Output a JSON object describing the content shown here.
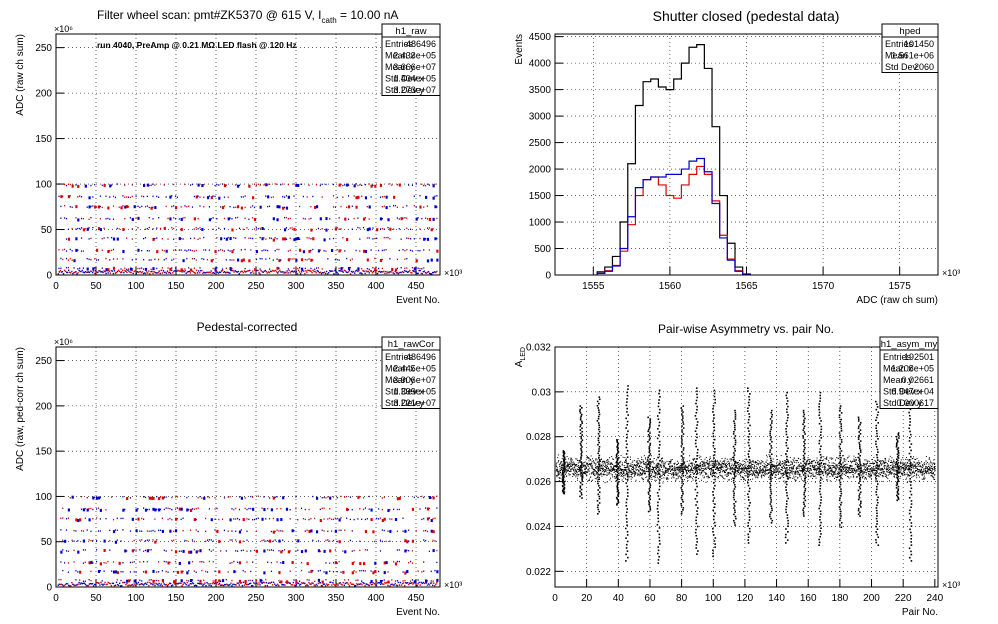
{
  "chart_data": [
    {
      "type": "scatter",
      "title": "Filter wheel scan: pmt#ZK5370 @   615 V, I",
      "title_sub": "cath",
      "title_tail": " = 10.00 nA",
      "annotation": "run 4040, PreAmp @ 0.21 MΩ LED flash @  120 Hz",
      "xlabel": "Event No.",
      "ylabel": "ADC (raw ch sum)",
      "x_exponent": "×10³",
      "y_exponent": "×10⁶",
      "xlim": [
        0,
        480
      ],
      "ylim": [
        0,
        265
      ],
      "xticks": [
        "0",
        "50",
        "100",
        "150",
        "200",
        "250",
        "300",
        "350",
        "400",
        "450"
      ],
      "yticks": [
        "0",
        "50",
        "100",
        "150",
        "200",
        "250"
      ],
      "grid": true,
      "stats": {
        "name": "h1_raw",
        "rows": [
          [
            "Entries",
            "486496"
          ],
          [
            "Mean x",
            "2.433e+05"
          ],
          [
            "Mean y",
            "3.666e+07"
          ],
          [
            "Std Dev x",
            "1.404e+05"
          ],
          [
            "Std Dev y",
            "3.273e+07"
          ]
        ]
      },
      "levels": [
        100,
        87,
        76,
        63,
        52,
        41,
        28,
        18,
        8
      ],
      "colors": {
        "red": "#e00000",
        "blue": "#0000cc"
      }
    },
    {
      "type": "histogram",
      "title": "Shutter closed (pedestal data)",
      "xlabel": "ADC (raw ch sum)",
      "ylabel": "Events",
      "x_exponent": "×10³",
      "xlim": [
        1552.5,
        1577.5
      ],
      "ylim": [
        0,
        4550
      ],
      "xticks": [
        "1555",
        "1560",
        "1565",
        "1570",
        "1575"
      ],
      "yticks": [
        "0",
        "500",
        "1000",
        "1500",
        "2000",
        "2500",
        "3000",
        "3500",
        "4000",
        "4500"
      ],
      "grid": true,
      "stats": {
        "name": "hped",
        "rows": [
          [
            "Entries",
            "101450"
          ],
          [
            "Mean",
            "1.561e+06"
          ],
          [
            "Std Dev",
            "2060"
          ]
        ]
      },
      "series": [
        {
          "color": "#000000",
          "x": [
            1555.5,
            1556,
            1556.5,
            1557,
            1557.5,
            1558,
            1558.5,
            1559,
            1559.5,
            1560,
            1560.5,
            1561,
            1561.5,
            1562,
            1562.5,
            1563,
            1563.5,
            1564,
            1564.5,
            1565
          ],
          "values": [
            60,
            150,
            350,
            1000,
            2100,
            3200,
            3650,
            3700,
            3550,
            3500,
            3700,
            4000,
            4300,
            4350,
            3900,
            2800,
            1500,
            600,
            150,
            20
          ]
        },
        {
          "color": "#e00000",
          "x": [
            1555.5,
            1556,
            1556.5,
            1557,
            1557.5,
            1558,
            1558.5,
            1559,
            1559.5,
            1560,
            1560.5,
            1561,
            1561.5,
            1562,
            1562.5,
            1563,
            1563.5,
            1564,
            1564.5,
            1565
          ],
          "values": [
            30,
            80,
            180,
            450,
            950,
            1500,
            1800,
            1850,
            1700,
            1500,
            1450,
            1700,
            1900,
            2050,
            1900,
            1400,
            750,
            300,
            80,
            10
          ]
        },
        {
          "color": "#0000cc",
          "x": [
            1555.5,
            1556,
            1556.5,
            1557,
            1557.5,
            1558,
            1558.5,
            1559,
            1559.5,
            1560,
            1560.5,
            1561,
            1561.5,
            1562,
            1562.5,
            1563,
            1563.5,
            1564,
            1564.5,
            1565
          ],
          "values": [
            30,
            70,
            170,
            500,
            1100,
            1650,
            1800,
            1850,
            1850,
            1900,
            1900,
            2000,
            2150,
            2200,
            1950,
            1350,
            700,
            280,
            70,
            10
          ]
        }
      ]
    },
    {
      "type": "scatter",
      "title": "Pedestal-corrected",
      "xlabel": "Event No.",
      "ylabel": "ADC (raw, ped-corr ch sum)",
      "x_exponent": "×10³",
      "y_exponent": "×10⁶",
      "xlim": [
        0,
        480
      ],
      "ylim": [
        0,
        265
      ],
      "xticks": [
        "0",
        "50",
        "100",
        "150",
        "200",
        "250",
        "300",
        "350",
        "400",
        "450"
      ],
      "yticks": [
        "0",
        "50",
        "100",
        "150",
        "200",
        "250"
      ],
      "grid": true,
      "stats": {
        "name": "h1_rawCor",
        "rows": [
          [
            "Entries",
            "486496"
          ],
          [
            "Mean x",
            "2.445e+05"
          ],
          [
            "Mean y",
            "3.906e+07"
          ],
          [
            "Std Dev x",
            "1.399e+05"
          ],
          [
            "Std Dev y",
            "3.221e+07"
          ]
        ]
      },
      "levels": [
        100,
        87,
        76,
        63,
        52,
        41,
        28,
        18,
        8
      ]
    },
    {
      "type": "scatter",
      "title": "Pair-wise Asymmetry vs. pair No.",
      "xlabel": "Pair No.",
      "ylabel": "A",
      "ylabel_sub": "LED",
      "x_exponent": "×10³",
      "xlim": [
        0,
        242
      ],
      "ylim": [
        0.0213,
        0.032
      ],
      "xticks": [
        "0",
        "20",
        "40",
        "60",
        "80",
        "100",
        "120",
        "140",
        "160",
        "180",
        "200",
        "220",
        "240"
      ],
      "yticks": [
        "0.022",
        "0.024",
        "0.026",
        "0.028",
        "0.03",
        "0.032"
      ],
      "grid": true,
      "stats": {
        "name": "h1_asym_my",
        "rows": [
          [
            "Entries",
            "192501"
          ],
          [
            "Mean x",
            "1.208e+05"
          ],
          [
            "Mean y",
            "0.02661"
          ],
          [
            "Std Dev x",
            "6.947e+04"
          ],
          [
            "Std Dev y",
            "0.000617"
          ]
        ]
      },
      "band": [
        0.0259,
        0.0273
      ],
      "spikes": [
        {
          "x": 5,
          "low": 0.0255,
          "high": 0.0274
        },
        {
          "x": 16,
          "low": 0.0253,
          "high": 0.0294
        },
        {
          "x": 27,
          "low": 0.0246,
          "high": 0.0298
        },
        {
          "x": 39,
          "low": 0.025,
          "high": 0.0279
        },
        {
          "x": 45,
          "low": 0.0225,
          "high": 0.0303
        },
        {
          "x": 59,
          "low": 0.0247,
          "high": 0.0289
        },
        {
          "x": 65,
          "low": 0.0224,
          "high": 0.0301
        },
        {
          "x": 80,
          "low": 0.0246,
          "high": 0.0294
        },
        {
          "x": 89,
          "low": 0.0228,
          "high": 0.0302
        },
        {
          "x": 100,
          "low": 0.0227,
          "high": 0.0301
        },
        {
          "x": 113,
          "low": 0.0241,
          "high": 0.0292
        },
        {
          "x": 122,
          "low": 0.0233,
          "high": 0.0302
        },
        {
          "x": 136,
          "low": 0.0242,
          "high": 0.0292
        },
        {
          "x": 146,
          "low": 0.0233,
          "high": 0.03
        },
        {
          "x": 157,
          "low": 0.0245,
          "high": 0.0292
        },
        {
          "x": 167,
          "low": 0.0232,
          "high": 0.03
        },
        {
          "x": 180,
          "low": 0.024,
          "high": 0.0294
        },
        {
          "x": 192,
          "low": 0.0245,
          "high": 0.0289
        },
        {
          "x": 203,
          "low": 0.0232,
          "high": 0.0296
        },
        {
          "x": 216,
          "low": 0.0252,
          "high": 0.0282
        },
        {
          "x": 224,
          "low": 0.0225,
          "high": 0.0301
        }
      ]
    }
  ]
}
